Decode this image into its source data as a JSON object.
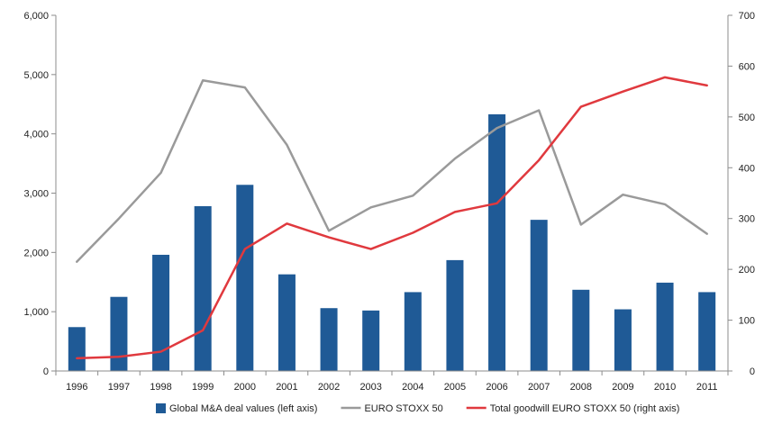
{
  "chart_data": {
    "type": "bar",
    "categories": [
      "1996",
      "1997",
      "1998",
      "1999",
      "2000",
      "2001",
      "2002",
      "2003",
      "2004",
      "2005",
      "2006",
      "2007",
      "2008",
      "2009",
      "2010",
      "2011"
    ],
    "series": [
      {
        "name": "Global M&A deal values (left axis)",
        "type": "bar",
        "axis": "left",
        "color": "#1F5A96",
        "values": [
          740,
          1250,
          1960,
          2780,
          3140,
          1630,
          1060,
          1020,
          1330,
          1870,
          4330,
          2550,
          1370,
          1040,
          1490,
          1330
        ]
      },
      {
        "name": "EURO STOXX 50",
        "type": "line",
        "axis": "right",
        "color": "#9A9A9A",
        "values": [
          215,
          300,
          390,
          572,
          558,
          445,
          276,
          322,
          345,
          418,
          478,
          513,
          288,
          347,
          328,
          270
        ]
      },
      {
        "name": "Total goodwill EURO STOXX 50 (right axis)",
        "type": "line",
        "axis": "right",
        "color": "#E0393E",
        "values": [
          25,
          28,
          38,
          80,
          240,
          290,
          263,
          240,
          272,
          313,
          330,
          415,
          520,
          550,
          578,
          562
        ]
      }
    ],
    "left_axis": {
      "ylim": [
        0,
        6000
      ],
      "ticks": [
        0,
        1000,
        2000,
        3000,
        4000,
        5000,
        6000
      ],
      "tick_labels": [
        "0",
        "1,000",
        "2,000",
        "3,000",
        "4,000",
        "5,000",
        "6,000"
      ]
    },
    "right_axis": {
      "ylim": [
        0,
        700
      ],
      "ticks": [
        0,
        100,
        200,
        300,
        400,
        500,
        600,
        700
      ],
      "tick_labels": [
        "0",
        "100",
        "200",
        "300",
        "400",
        "500",
        "600",
        "700"
      ]
    },
    "title": "",
    "xlabel": "",
    "grid": false,
    "legend_position": "bottom"
  }
}
